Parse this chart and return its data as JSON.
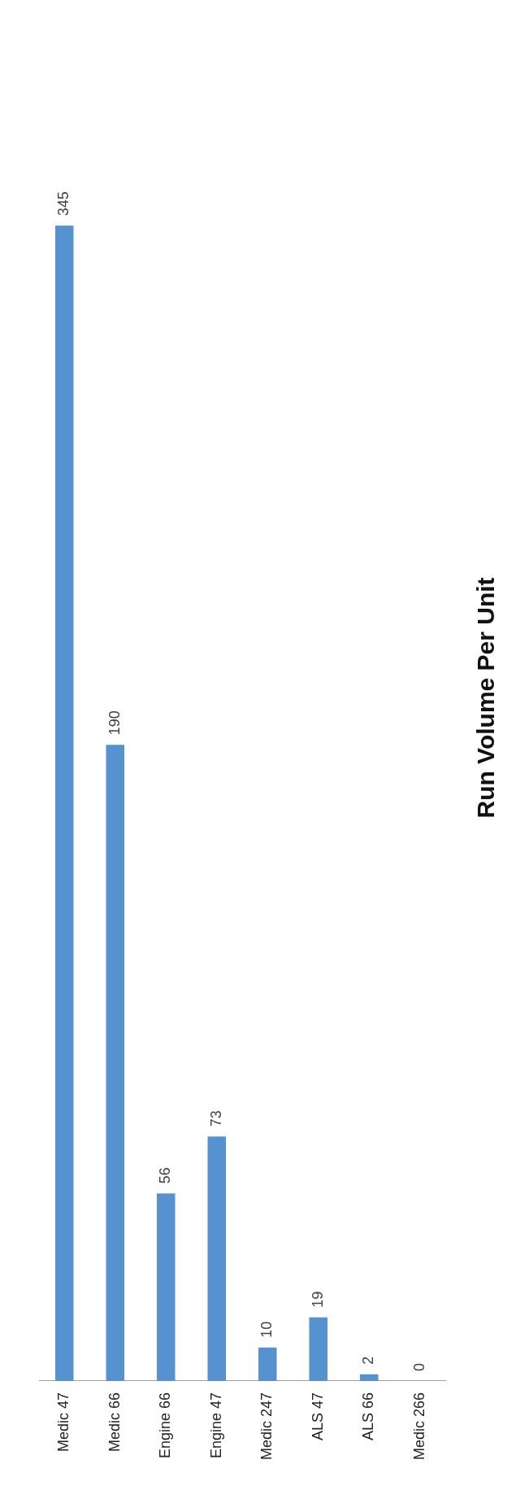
{
  "chart_data": {
    "type": "bar",
    "title": "Run Volume Per Unit",
    "categories": [
      "Medic 47",
      "Medic 66",
      "Engine 66",
      "Engine 47",
      "Medic 247",
      "ALS 47",
      "ALS 66",
      "Medic 266"
    ],
    "values": [
      345,
      190,
      56,
      73,
      10,
      19,
      2,
      0
    ],
    "color": "#5592cf",
    "data_labels": true,
    "legend": false
  }
}
